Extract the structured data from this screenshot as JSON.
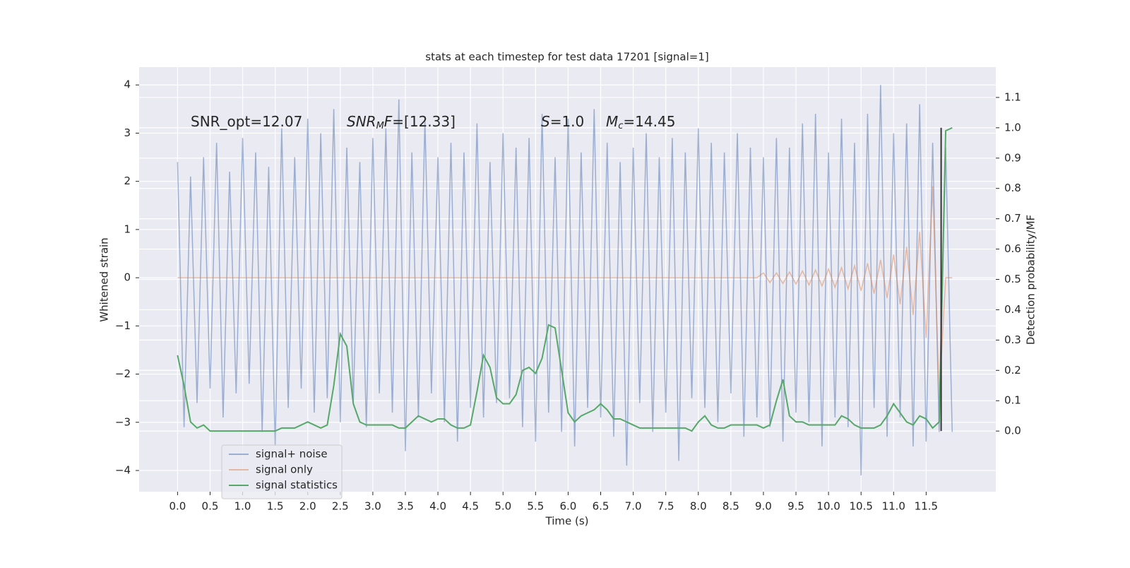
{
  "chart_data": {
    "type": "line",
    "title": "stats at each timestep for test data 17201 [signal=1]",
    "xlabel": "Time (s)",
    "ylabel": "Whitened strain",
    "y2label": "Detection probability/MF",
    "annotations": [
      [
        {
          "text": "SNR_opt=12.07"
        }
      ],
      [
        {
          "text": "SNR",
          "italic": true
        },
        {
          "text": "M",
          "italic": true,
          "sub": true
        },
        {
          "text": "F",
          "italic": true
        },
        {
          "text": "=[12.33]"
        }
      ],
      [
        {
          "text": "S",
          "italic": true
        },
        {
          "text": "=1.0"
        }
      ],
      [
        {
          "text": "M",
          "italic": true
        },
        {
          "text": "c",
          "italic": true,
          "sub": true
        },
        {
          "text": "=14.45"
        }
      ]
    ],
    "x": [
      0,
      0.1,
      0.2,
      0.3,
      0.4,
      0.5,
      0.6,
      0.7,
      0.8,
      0.9,
      1,
      1.1,
      1.2,
      1.3,
      1.4,
      1.5,
      1.6,
      1.7,
      1.8,
      1.9,
      2,
      2.1,
      2.2,
      2.3,
      2.4,
      2.5,
      2.6,
      2.7,
      2.8,
      2.9,
      3,
      3.1,
      3.2,
      3.3,
      3.4,
      3.5,
      3.6,
      3.7,
      3.8,
      3.9,
      4,
      4.1,
      4.2,
      4.3,
      4.4,
      4.5,
      4.6,
      4.7,
      4.8,
      4.9,
      5,
      5.1,
      5.2,
      5.3,
      5.4,
      5.5,
      5.6,
      5.7,
      5.8,
      5.9,
      6,
      6.1,
      6.2,
      6.3,
      6.4,
      6.5,
      6.6,
      6.7,
      6.8,
      6.9,
      7,
      7.1,
      7.2,
      7.3,
      7.4,
      7.5,
      7.6,
      7.7,
      7.8,
      7.9,
      8,
      8.1,
      8.2,
      8.3,
      8.4,
      8.5,
      8.6,
      8.7,
      8.8,
      8.9,
      9,
      9.1,
      9.2,
      9.3,
      9.4,
      9.5,
      9.6,
      9.7,
      9.8,
      9.9,
      10,
      10.1,
      10.2,
      10.3,
      10.4,
      10.5,
      10.6,
      10.7,
      10.8,
      10.9,
      11,
      11.1,
      11.2,
      11.3,
      11.4,
      11.5,
      11.6,
      11.7,
      11.8,
      11.9
    ],
    "series": [
      {
        "name": "signal+ noise",
        "color": "#4c72b0",
        "alpha": 0.5,
        "axis": "y",
        "values": [
          2.4,
          -3.1,
          2.1,
          -2.6,
          2.5,
          -2.3,
          2.8,
          -2.9,
          2.2,
          -2.4,
          2.9,
          -2.2,
          2.6,
          -3.2,
          2.3,
          -3.5,
          3.1,
          -2.7,
          2.5,
          -2.3,
          3.3,
          -2.8,
          3.0,
          -2.5,
          3.5,
          -3.0,
          2.7,
          -2.6,
          2.4,
          -3.1,
          2.9,
          -2.4,
          3.1,
          -2.8,
          3.7,
          -3.6,
          2.6,
          -2.9,
          3.3,
          -2.4,
          2.5,
          -3.0,
          2.8,
          -3.4,
          2.6,
          -2.7,
          3.2,
          -2.9,
          2.4,
          -2.6,
          3.0,
          -2.5,
          2.7,
          -3.1,
          2.9,
          -3.4,
          3.4,
          -2.8,
          2.5,
          -3.2,
          3.3,
          -3.5,
          2.6,
          -2.7,
          3.5,
          -2.9,
          2.8,
          -3.3,
          2.4,
          -3.9,
          2.7,
          -2.6,
          3.0,
          -3.2,
          2.5,
          -2.8,
          2.9,
          -3.8,
          2.6,
          -2.5,
          3.1,
          -2.7,
          2.8,
          -3.0,
          2.6,
          -2.4,
          3.0,
          -3.3,
          2.7,
          -2.9,
          2.5,
          -3.1,
          2.9,
          -3.4,
          2.7,
          -2.8,
          3.2,
          -3.0,
          3.4,
          -3.5,
          2.6,
          -2.9,
          3.3,
          -3.1,
          2.8,
          -4.1,
          3.4,
          -2.7,
          4.0,
          -3.3,
          3.0,
          -2.9,
          3.2,
          -3.5,
          3.6,
          -3.4,
          2.8,
          -3.2,
          2.7,
          -3.2
        ]
      },
      {
        "name": "signal only",
        "color": "#dd8452",
        "alpha": 0.5,
        "axis": "y",
        "values": [
          0,
          0,
          0,
          0,
          0,
          0,
          0,
          0,
          0,
          0,
          0,
          0,
          0,
          0,
          0,
          0,
          0,
          0,
          0,
          0,
          0,
          0,
          0,
          0,
          0,
          0,
          0,
          0,
          0,
          0,
          0,
          0,
          0,
          0,
          0,
          0,
          0,
          0,
          0,
          0,
          0,
          0,
          0,
          0,
          0,
          0,
          0,
          0,
          0,
          0,
          0,
          0,
          0,
          0,
          0,
          0,
          0,
          0,
          0,
          0,
          0,
          0,
          0,
          0,
          0,
          0,
          0,
          0,
          0,
          0,
          0,
          0,
          0,
          0,
          0,
          0,
          0,
          0,
          0,
          0,
          0,
          0,
          0,
          0,
          0,
          0,
          0,
          0,
          0,
          0,
          0.1,
          -0.1,
          0.1,
          -0.12,
          0.12,
          -0.13,
          0.14,
          -0.15,
          0.16,
          -0.17,
          0.18,
          -0.2,
          0.21,
          -0.23,
          0.25,
          -0.27,
          0.3,
          -0.33,
          0.37,
          -0.42,
          0.48,
          -0.55,
          0.64,
          -0.77,
          0.95,
          -1.25,
          1.9,
          -2.5,
          0,
          0
        ]
      },
      {
        "name": "signal statistics",
        "color": "#55a868",
        "alpha": 1,
        "axis": "y2",
        "values": [
          0.25,
          0.15,
          0.03,
          0.01,
          0.02,
          0,
          0,
          0,
          0,
          0,
          0,
          0,
          0,
          0,
          0,
          0,
          0.01,
          0.01,
          0.01,
          0.02,
          0.03,
          0.02,
          0.01,
          0.02,
          0.15,
          0.32,
          0.28,
          0.09,
          0.03,
          0.02,
          0.02,
          0.02,
          0.02,
          0.02,
          0.01,
          0.01,
          0.03,
          0.05,
          0.04,
          0.03,
          0.04,
          0.04,
          0.02,
          0.01,
          0.01,
          0.02,
          0.13,
          0.25,
          0.21,
          0.11,
          0.09,
          0.09,
          0.12,
          0.2,
          0.21,
          0.19,
          0.24,
          0.35,
          0.34,
          0.2,
          0.06,
          0.03,
          0.05,
          0.06,
          0.07,
          0.09,
          0.07,
          0.04,
          0.04,
          0.03,
          0.02,
          0.01,
          0.01,
          0.01,
          0.01,
          0.01,
          0.01,
          0.01,
          0.01,
          0,
          0.03,
          0.05,
          0.02,
          0.01,
          0.01,
          0.02,
          0.02,
          0.02,
          0.02,
          0.02,
          0.01,
          0.02,
          0.1,
          0.17,
          0.05,
          0.03,
          0.03,
          0.02,
          0.02,
          0.02,
          0.02,
          0.02,
          0.05,
          0.04,
          0.02,
          0.01,
          0.01,
          0.01,
          0.02,
          0.05,
          0.09,
          0.06,
          0.03,
          0.02,
          0.05,
          0.04,
          0.01,
          0.03,
          0.99,
          1.0
        ]
      }
    ],
    "vlines": [
      {
        "x": 11.73,
        "y2": [
          0,
          1.0
        ],
        "color": "#333333"
      }
    ],
    "xlim": [
      -0.59,
      12.57
    ],
    "ylim": [
      -4.44,
      4.37
    ],
    "y2lim": [
      -0.2,
      1.2
    ],
    "xticks": [
      {
        "value": 0,
        "label": "0.0"
      },
      0.5,
      {
        "value": 1,
        "label": "1.0"
      },
      1.5,
      {
        "value": 2,
        "label": "2.0"
      },
      2.5,
      {
        "value": 3,
        "label": "3.0"
      },
      3.5,
      {
        "value": 4,
        "label": "4.0"
      },
      4.5,
      {
        "value": 5,
        "label": "5.0"
      },
      5.5,
      {
        "value": 6,
        "label": "6.0"
      },
      6.5,
      {
        "value": 7,
        "label": "7.0"
      },
      7.5,
      {
        "value": 8,
        "label": "8.0"
      },
      8.5,
      {
        "value": 9,
        "label": "9.0"
      },
      9.5,
      {
        "value": 10,
        "label": "10.0"
      },
      10.5,
      {
        "value": 11,
        "label": "11.0"
      },
      11.5
    ],
    "yticks": [
      {
        "value": -4,
        "label": "−4"
      },
      {
        "value": -3,
        "label": "−3"
      },
      {
        "value": -2,
        "label": "−2"
      },
      {
        "value": -1,
        "label": "−1"
      },
      0,
      1,
      2,
      3,
      4
    ],
    "y2ticks": [
      {
        "value": 0,
        "label": "0.0"
      },
      0.1,
      0.2,
      0.3,
      0.4,
      0.5,
      0.6,
      0.7,
      0.8,
      0.9,
      {
        "value": 1,
        "label": "1.0"
      },
      1.1
    ],
    "grid": true,
    "legend": "lower left"
  }
}
